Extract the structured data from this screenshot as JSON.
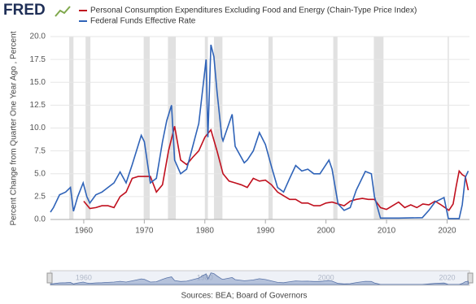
{
  "logo": "FRED",
  "chart_data": {
    "type": "line",
    "y_label": "Percent Change from Quarter One Year Ago , Percent",
    "source": "Sources: BEA; Board of Governors",
    "xlim": [
      1954.5,
      2023.7
    ],
    "xticks": [
      1960,
      1970,
      1980,
      1990,
      2000,
      2010,
      2020
    ],
    "ylim": [
      0,
      20
    ],
    "yticks": [
      {
        "value": 0,
        "label": "0.0"
      },
      {
        "value": 2.5,
        "label": "2.5"
      },
      {
        "value": 5,
        "label": "5.0"
      },
      {
        "value": 7.5,
        "label": "7.5"
      },
      {
        "value": 10,
        "label": "10.0"
      },
      {
        "value": 12.5,
        "label": "12.5"
      },
      {
        "value": 15,
        "label": "15.0"
      },
      {
        "value": 17.5,
        "label": "17.5"
      },
      {
        "value": 20,
        "label": "20.0"
      }
    ],
    "grid": true,
    "recessions": [
      [
        1957.6,
        1958.3
      ],
      [
        1960.3,
        1961.1
      ],
      [
        1969.9,
        1970.9
      ],
      [
        1973.9,
        1975.2
      ],
      [
        1980.0,
        1980.5
      ],
      [
        1981.5,
        1982.9
      ],
      [
        1990.5,
        1991.2
      ],
      [
        2001.2,
        2001.9
      ],
      [
        2007.9,
        2009.5
      ],
      [
        2020.1,
        2020.3
      ]
    ],
    "navigator_xticks": [
      1960,
      1980,
      2000,
      2020
    ],
    "series": [
      {
        "name": "Personal Consumption Expenditures Excluding Food and Energy (Chain-Type Price Index)",
        "color": "#c0101e",
        "x": [
          1960,
          1961,
          1962,
          1963,
          1964,
          1965,
          1966,
          1967,
          1968,
          1969,
          1970,
          1971,
          1972,
          1973,
          1974,
          1975,
          1976,
          1977,
          1978,
          1979,
          1980,
          1981,
          1982,
          1983,
          1984,
          1985,
          1986,
          1987,
          1988,
          1989,
          1990,
          1991,
          1992,
          1993,
          1994,
          1995,
          1996,
          1997,
          1998,
          1999,
          2000,
          2001,
          2002,
          2003,
          2004,
          2005,
          2006,
          2007,
          2008,
          2009,
          2010,
          2011,
          2012,
          2013,
          2014,
          2015,
          2016,
          2017,
          2018,
          2019,
          2020.3,
          2021,
          2021.5,
          2022,
          2022.5,
          2023,
          2023.5
        ],
        "values": [
          2.0,
          1.2,
          1.3,
          1.5,
          1.5,
          1.3,
          2.5,
          3.0,
          4.5,
          4.7,
          4.7,
          4.7,
          3.0,
          3.8,
          7.5,
          10.2,
          6.5,
          6.0,
          6.8,
          7.5,
          9.0,
          9.8,
          7.5,
          5.0,
          4.2,
          4.0,
          3.8,
          3.5,
          4.5,
          4.2,
          4.3,
          3.8,
          3.0,
          2.6,
          2.2,
          2.2,
          1.8,
          1.8,
          1.5,
          1.5,
          1.8,
          1.9,
          1.7,
          1.5,
          2.0,
          2.2,
          2.3,
          2.2,
          2.2,
          1.3,
          1.1,
          1.5,
          1.9,
          1.3,
          1.6,
          1.3,
          1.7,
          1.6,
          2.0,
          1.6,
          1.0,
          1.7,
          3.6,
          5.3,
          4.9,
          4.7,
          3.2
        ]
      },
      {
        "name": "Federal Funds Effective Rate",
        "color": "#2f63b8",
        "x": [
          1954.5,
          1955,
          1956,
          1957,
          1957.8,
          1958.3,
          1959,
          1959.9,
          1960.5,
          1961,
          1962,
          1963,
          1964,
          1965,
          1966,
          1967,
          1968,
          1969.5,
          1970,
          1971,
          1972,
          1973,
          1973.7,
          1974.5,
          1975,
          1976,
          1977,
          1978,
          1979,
          1980.2,
          1980.5,
          1981,
          1981.5,
          1982,
          1982.8,
          1983,
          1984.5,
          1985,
          1986.5,
          1987,
          1988,
          1989,
          1990,
          1991,
          1992,
          1993,
          1994,
          1995,
          1996,
          1997,
          1998,
          1999,
          2000.5,
          2001,
          2002,
          2003,
          2004,
          2005,
          2006.5,
          2007.5,
          2008,
          2009,
          2012,
          2015.9,
          2017,
          2018,
          2019.5,
          2020.2,
          2022,
          2022.5,
          2023,
          2023.5
        ],
        "values": [
          0.8,
          1.3,
          2.7,
          3.0,
          3.5,
          0.9,
          2.5,
          4.0,
          2.5,
          1.8,
          2.7,
          3.0,
          3.5,
          4.0,
          5.2,
          4.0,
          6.0,
          9.2,
          8.5,
          4.0,
          4.5,
          8.5,
          10.8,
          12.5,
          6.5,
          5.0,
          5.5,
          8.0,
          10.5,
          17.5,
          9.0,
          19.1,
          17.8,
          14.0,
          9.0,
          8.6,
          11.5,
          8.0,
          6.2,
          6.5,
          7.5,
          9.5,
          8.2,
          5.8,
          3.5,
          3.0,
          4.5,
          5.9,
          5.3,
          5.5,
          5.0,
          5.0,
          6.5,
          5.5,
          1.7,
          1.0,
          1.3,
          3.2,
          5.25,
          5.0,
          2.5,
          0.15,
          0.15,
          0.2,
          1.0,
          1.9,
          2.4,
          0.1,
          0.1,
          1.6,
          4.6,
          5.3
        ]
      }
    ]
  }
}
